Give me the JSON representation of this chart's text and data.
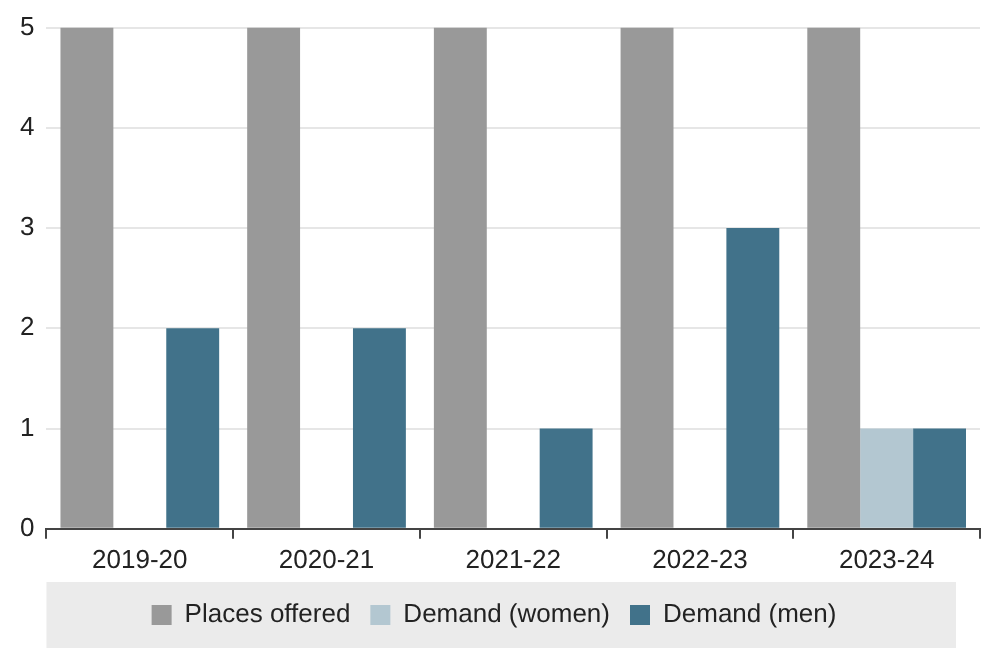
{
  "chart_data": {
    "type": "bar",
    "categories": [
      "2019-20",
      "2020-21",
      "2021-22",
      "2022-23",
      "2023-24"
    ],
    "series": [
      {
        "name": "Places offered",
        "color": "#999999",
        "values": [
          5,
          5,
          5,
          5,
          5
        ]
      },
      {
        "name": "Demand (women)",
        "color": "#b3c7d1",
        "values": [
          0,
          0,
          0,
          0,
          1
        ]
      },
      {
        "name": "Demand (men)",
        "color": "#41728a",
        "values": [
          2,
          2,
          1,
          3,
          1
        ]
      }
    ],
    "ylim": [
      0,
      5
    ],
    "yticks": [
      0,
      1,
      2,
      3,
      4,
      5
    ],
    "grid": "y",
    "legend": "bottom"
  }
}
